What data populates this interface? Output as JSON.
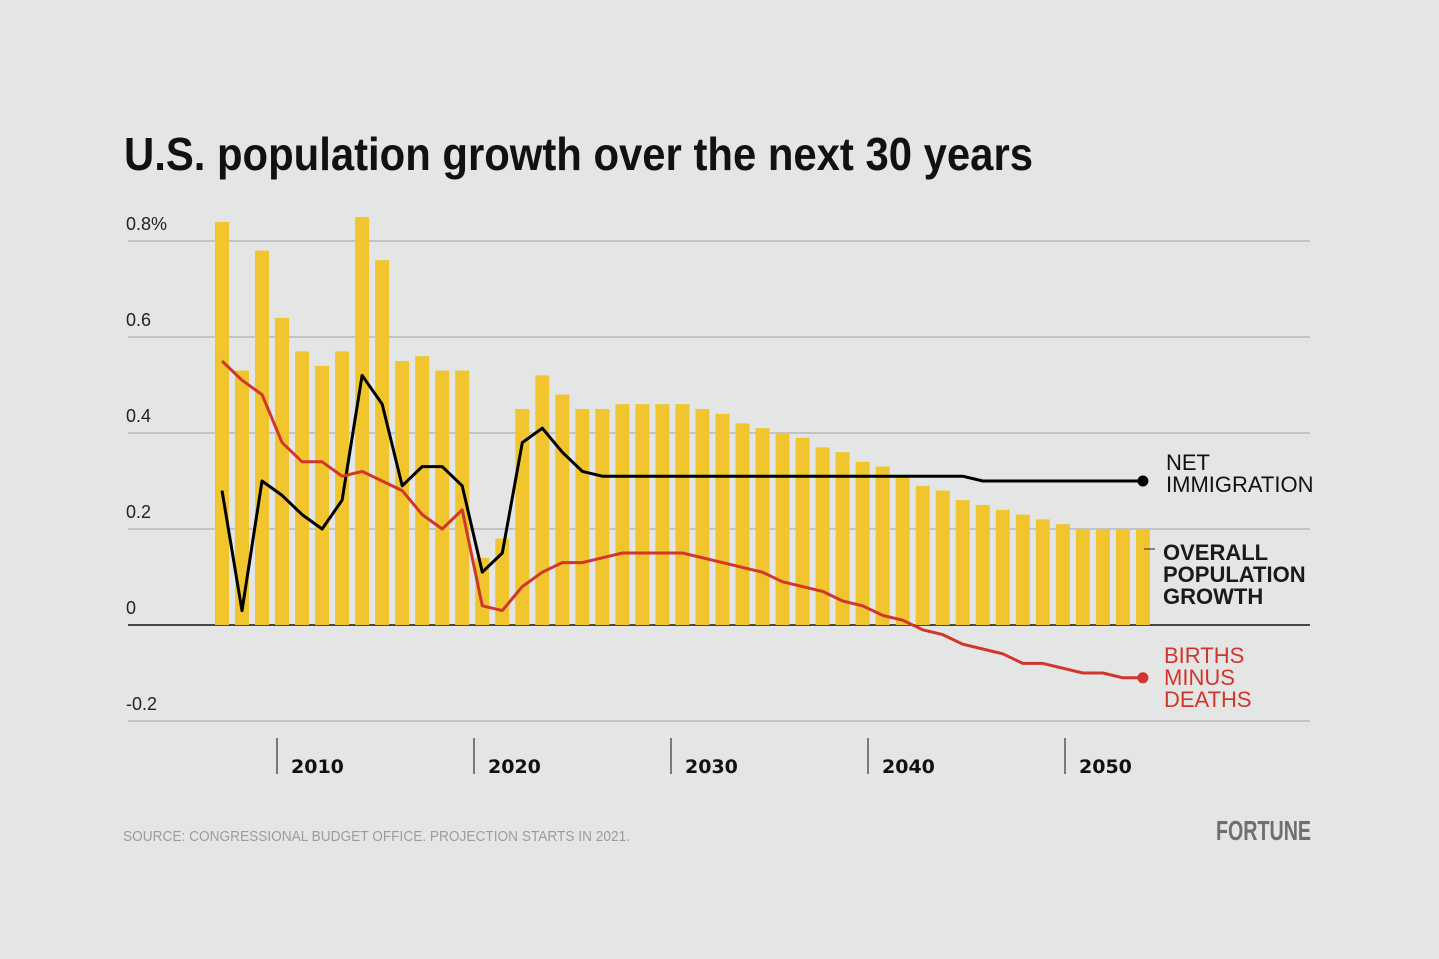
{
  "chart_data": {
    "type": "bar",
    "title": "U.S. population growth over the next 30 years",
    "xlabel": "",
    "ylabel": "",
    "unit": "%",
    "ylim": [
      -0.2,
      0.8
    ],
    "yticks": [
      0.8,
      0.6,
      0.4,
      0.2,
      0,
      -0.2
    ],
    "ytick_labels": [
      "0.8%",
      "0.6",
      "0.4",
      "0.2",
      "0",
      "-0.2"
    ],
    "xticks": [
      2010,
      2020,
      2030,
      2040,
      2050
    ],
    "xtick_labels": [
      "2010",
      "2020",
      "2030",
      "2040",
      "2050"
    ],
    "grid": true,
    "legend": "right, direct labels",
    "categories": [
      2007,
      2008,
      2009,
      2010,
      2011,
      2012,
      2013,
      2014,
      2015,
      2016,
      2017,
      2018,
      2019,
      2020,
      2021,
      2022,
      2023,
      2024,
      2025,
      2026,
      2027,
      2028,
      2029,
      2030,
      2031,
      2032,
      2033,
      2034,
      2035,
      2036,
      2037,
      2038,
      2039,
      2040,
      2041,
      2042,
      2043,
      2044,
      2045,
      2046,
      2047,
      2048,
      2049,
      2050,
      2051,
      2052,
      2053
    ],
    "series": [
      {
        "label": [
          "OVERALL",
          "POPULATION",
          "GROWTH"
        ],
        "type": "bar",
        "color": "#f0c52e",
        "label_color": "#1a1a1a",
        "values": [
          0.84,
          0.53,
          0.78,
          0.64,
          0.57,
          0.54,
          0.57,
          0.85,
          0.76,
          0.55,
          0.56,
          0.53,
          0.53,
          0.14,
          0.18,
          0.45,
          0.52,
          0.48,
          0.45,
          0.45,
          0.46,
          0.46,
          0.46,
          0.46,
          0.45,
          0.44,
          0.42,
          0.41,
          0.4,
          0.39,
          0.37,
          0.36,
          0.34,
          0.33,
          0.31,
          0.29,
          0.28,
          0.26,
          0.25,
          0.24,
          0.23,
          0.22,
          0.21,
          0.2,
          0.2,
          0.2,
          0.2
        ]
      },
      {
        "label": [
          "NET",
          "IMMIGRATION"
        ],
        "type": "line",
        "color": "#000000",
        "label_color": "#111111",
        "values": [
          0.28,
          0.03,
          0.3,
          0.27,
          0.23,
          0.2,
          0.26,
          0.52,
          0.46,
          0.29,
          0.33,
          0.33,
          0.29,
          0.11,
          0.15,
          0.38,
          0.41,
          0.36,
          0.32,
          0.31,
          0.31,
          0.31,
          0.31,
          0.31,
          0.31,
          0.31,
          0.31,
          0.31,
          0.31,
          0.31,
          0.31,
          0.31,
          0.31,
          0.31,
          0.31,
          0.31,
          0.31,
          0.31,
          0.3,
          0.3,
          0.3,
          0.3,
          0.3,
          0.3,
          0.3,
          0.3,
          0.3
        ]
      },
      {
        "label": [
          "BIRTHS",
          "MINUS",
          "DEATHS"
        ],
        "type": "line",
        "color": "#d0362b",
        "label_color": "#d0362b",
        "values": [
          0.55,
          0.51,
          0.48,
          0.38,
          0.34,
          0.34,
          0.31,
          0.32,
          0.3,
          0.28,
          0.23,
          0.2,
          0.24,
          0.04,
          0.03,
          0.08,
          0.11,
          0.13,
          0.13,
          0.14,
          0.15,
          0.15,
          0.15,
          0.15,
          0.14,
          0.13,
          0.12,
          0.11,
          0.09,
          0.08,
          0.07,
          0.05,
          0.04,
          0.02,
          0.01,
          -0.01,
          -0.02,
          -0.04,
          -0.05,
          -0.06,
          -0.08,
          -0.08,
          -0.09,
          -0.1,
          -0.1,
          -0.11,
          -0.11
        ]
      }
    ]
  },
  "footer": {
    "source": "SOURCE: CONGRESSIONAL BUDGET OFFICE. PROJECTION STARTS IN 2021.",
    "logo": "FORTUNE"
  },
  "colors": {
    "background": "#e4e6e5",
    "grid": "#b7b8b7"
  }
}
